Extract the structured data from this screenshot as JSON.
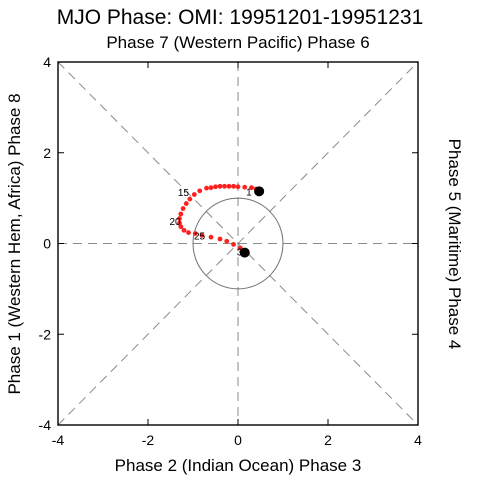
{
  "chart_data": {
    "type": "scatter",
    "title": "MJO Phase: OMI: 19951201-19951231",
    "labels": {
      "top": "Phase 7 (Western Pacific) Phase 6",
      "bottom": "Phase 2 (Indian Ocean) Phase 3",
      "left": "Phase 1 (Western Hem, Africa) Phase 8",
      "right": "Phase 5 (Maritime) Phase 4"
    },
    "xlim": [
      -4,
      4
    ],
    "ylim": [
      -4,
      4
    ],
    "x_ticks": [
      "-4",
      "-2",
      "0",
      "2",
      "4"
    ],
    "y_ticks": [
      "-4",
      "-2",
      "0",
      "2",
      "4"
    ],
    "unit_circle_radius": 1,
    "grid": "dashed phase lines",
    "point_color": "#ff2020",
    "start_marker_color": "#000000",
    "end_marker_color": "#000000",
    "day_labels": [
      {
        "text": "1",
        "day": 1
      },
      {
        "text": "15",
        "day": 15
      },
      {
        "text": "20",
        "day": 20
      },
      {
        "text": "25",
        "day": 25
      },
      {
        "text": "31",
        "day": 31
      }
    ],
    "series": [
      {
        "x": [
          0.47,
          0.4,
          0.3,
          0.15,
          0.0,
          -0.1,
          -0.2,
          -0.3,
          -0.4,
          -0.5,
          -0.6,
          -0.7,
          -0.85,
          -0.97,
          -1.07,
          -1.15,
          -1.22,
          -1.27,
          -1.3,
          -1.3,
          -1.27,
          -1.2,
          -1.1,
          -0.95,
          -0.8,
          -0.6,
          -0.4,
          -0.25,
          -0.1,
          0.05,
          0.15
        ],
        "y": [
          1.15,
          1.2,
          1.23,
          1.24,
          1.25,
          1.26,
          1.26,
          1.26,
          1.26,
          1.25,
          1.23,
          1.22,
          1.16,
          1.08,
          0.98,
          0.88,
          0.77,
          0.65,
          0.55,
          0.45,
          0.37,
          0.29,
          0.24,
          0.22,
          0.18,
          0.14,
          0.1,
          0.05,
          -0.02,
          -0.1,
          -0.2
        ]
      }
    ]
  }
}
